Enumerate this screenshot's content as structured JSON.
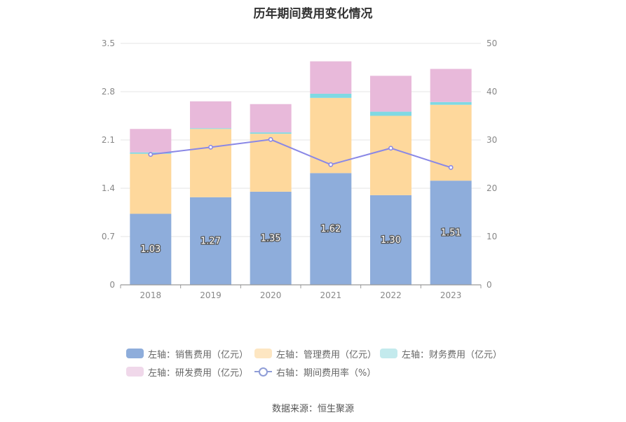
{
  "chart_data": {
    "type": "bar",
    "title": "历年期间费用变化情况",
    "categories": [
      "2018",
      "2019",
      "2020",
      "2021",
      "2022",
      "2023"
    ],
    "stacked": true,
    "y_left": {
      "min": 0,
      "max": 3.5,
      "ticks": [
        "0",
        "0.7",
        "1.4",
        "2.1",
        "2.8",
        "3.5"
      ]
    },
    "y_right": {
      "min": 0,
      "max": 50,
      "ticks": [
        "0",
        "10",
        "20",
        "30",
        "40",
        "50"
      ]
    },
    "series": [
      {
        "name": "左轴：销售费用（亿元）",
        "axis": "left",
        "kind": "bar",
        "color": "#8eaddb",
        "values": [
          1.03,
          1.27,
          1.35,
          1.62,
          1.3,
          1.51
        ],
        "labels": [
          "1.03",
          "1.27",
          "1.35",
          "1.62",
          "1.30",
          "1.51"
        ]
      },
      {
        "name": "左轴：管理费用（亿元）",
        "axis": "left",
        "kind": "bar",
        "color": "#fed89c",
        "values": [
          0.87,
          0.99,
          0.84,
          1.09,
          1.15,
          1.1
        ]
      },
      {
        "name": "左轴：财务费用（亿元）",
        "axis": "left",
        "kind": "bar",
        "color": "#7fd9e3",
        "values": [
          0.02,
          0.01,
          0.02,
          0.06,
          0.06,
          0.04
        ]
      },
      {
        "name": "左轴：研发费用（亿元）",
        "axis": "left",
        "kind": "bar",
        "color": "#e8b9da",
        "values": [
          0.34,
          0.39,
          0.41,
          0.47,
          0.52,
          0.48
        ]
      },
      {
        "name": "右轴：期间费用率（%）",
        "axis": "right",
        "kind": "line",
        "color": "#8a88e6",
        "values": [
          27.0,
          28.5,
          30.1,
          24.9,
          28.3,
          24.3
        ]
      }
    ],
    "legend_position": "bottom",
    "grid": true
  },
  "legend": [
    {
      "label": "左轴：销售费用（亿元）",
      "color": "#8eaddb",
      "kind": "bar"
    },
    {
      "label": "左轴：管理费用（亿元）",
      "color": "#fde6c2",
      "kind": "bar"
    },
    {
      "label": "左轴：财务费用（亿元）",
      "color": "#c3eaed",
      "kind": "bar"
    },
    {
      "label": "左轴：研发费用（亿元）",
      "color": "#f0d8ea",
      "kind": "bar"
    },
    {
      "label": "右轴：期间费用率（%）",
      "color": "#8f9dd7",
      "kind": "line"
    }
  ],
  "source": "数据来源：恒生聚源"
}
